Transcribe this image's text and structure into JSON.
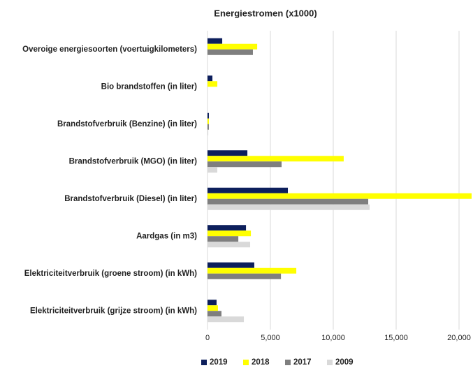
{
  "chart_data": {
    "type": "bar",
    "orientation": "horizontal",
    "title": "Energiestromen (x1000)",
    "categories": [
      "Overoige energiesoorten (voertuigkilometers)",
      "Bio brandstoffen (in liter)",
      "Brandstofverbruik (Benzine) (in liter)",
      "Brandstofverbruik (MGO) (in liter)",
      "Brandstofverbruik (Diesel) (in liter)",
      "Aardgas (in m3)",
      "Elektriciteitverbruik (groene stroom) (in kWh)",
      "Elektriciteitverbruik (grijze stroom) (in kWh)"
    ],
    "series": [
      {
        "name": "2019",
        "color": "#0d1f5c",
        "values": [
          1170,
          390,
          110,
          3170,
          6390,
          3060,
          3720,
          720
        ]
      },
      {
        "name": "2018",
        "color": "#ffff00",
        "values": [
          3950,
          780,
          110,
          10830,
          21000,
          3450,
          7060,
          830
        ]
      },
      {
        "name": "2017",
        "color": "#7f7f7f",
        "values": [
          3610,
          null,
          110,
          5890,
          12780,
          2450,
          5840,
          1110
        ]
      },
      {
        "name": "2009",
        "color": "#d9d9d9",
        "values": [
          null,
          null,
          60,
          780,
          12890,
          3390,
          null,
          2890
        ]
      }
    ],
    "xlim": [
      0,
      21000
    ],
    "xticks": [
      0,
      {
        "value": 5000,
        "label": "5,000"
      },
      {
        "value": 10000,
        "label": "10,000"
      },
      {
        "value": 15000,
        "label": "15,000"
      },
      {
        "value": 20000,
        "label": "20,000"
      }
    ],
    "grid": true,
    "legend": "bottom"
  }
}
